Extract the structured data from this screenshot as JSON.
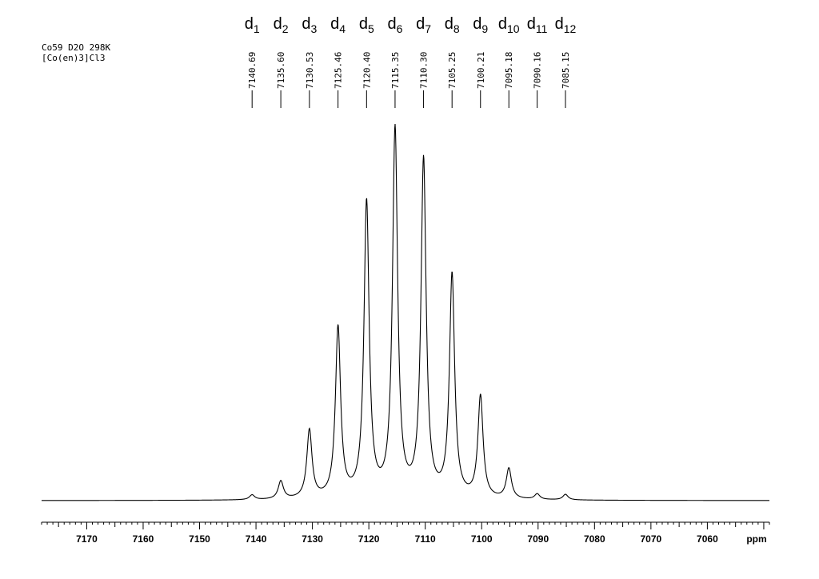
{
  "chart_data": {
    "type": "line",
    "title_lines": [
      "Co59 D2O 298K",
      "[Co(en)3]Cl3"
    ],
    "xlabel": "ppm",
    "xlim": [
      7178,
      7049
    ],
    "x_reversed": true,
    "xticks": [
      7170,
      7160,
      7150,
      7140,
      7130,
      7120,
      7110,
      7100,
      7090,
      7080,
      7070,
      7060
    ],
    "minor_tick_step": 1,
    "grid": false,
    "peaks": [
      {
        "label": "d",
        "sub": "1",
        "ppm": 7140.69,
        "ppm_text": "7140.69",
        "intensity": 0.013
      },
      {
        "label": "d",
        "sub": "2",
        "ppm": 7135.6,
        "ppm_text": "7135.60",
        "intensity": 0.049
      },
      {
        "label": "d",
        "sub": "3",
        "ppm": 7130.53,
        "ppm_text": "7130.53",
        "intensity": 0.186
      },
      {
        "label": "d",
        "sub": "4",
        "ppm": 7125.46,
        "ppm_text": "7125.46",
        "intensity": 0.463
      },
      {
        "label": "d",
        "sub": "5",
        "ppm": 7120.4,
        "ppm_text": "7120.40",
        "intensity": 0.802
      },
      {
        "label": "d",
        "sub": "6",
        "ppm": 7115.35,
        "ppm_text": "7115.35",
        "intensity": 1.0
      },
      {
        "label": "d",
        "sub": "7",
        "ppm": 7110.3,
        "ppm_text": "7110.30",
        "intensity": 0.917
      },
      {
        "label": "d",
        "sub": "8",
        "ppm": 7105.25,
        "ppm_text": "7105.25",
        "intensity": 0.605
      },
      {
        "label": "d",
        "sub": "9",
        "ppm": 7100.21,
        "ppm_text": "7100.21",
        "intensity": 0.277
      },
      {
        "label": "d",
        "sub": "10",
        "ppm": 7095.18,
        "ppm_text": "7095.18",
        "intensity": 0.082
      },
      {
        "label": "d",
        "sub": "11",
        "ppm": 7090.16,
        "ppm_text": "7090.16",
        "intensity": 0.015
      },
      {
        "label": "d",
        "sub": "12",
        "ppm": 7085.15,
        "ppm_text": "7085.15",
        "intensity": 0.015
      }
    ],
    "line_color": "#000000"
  }
}
